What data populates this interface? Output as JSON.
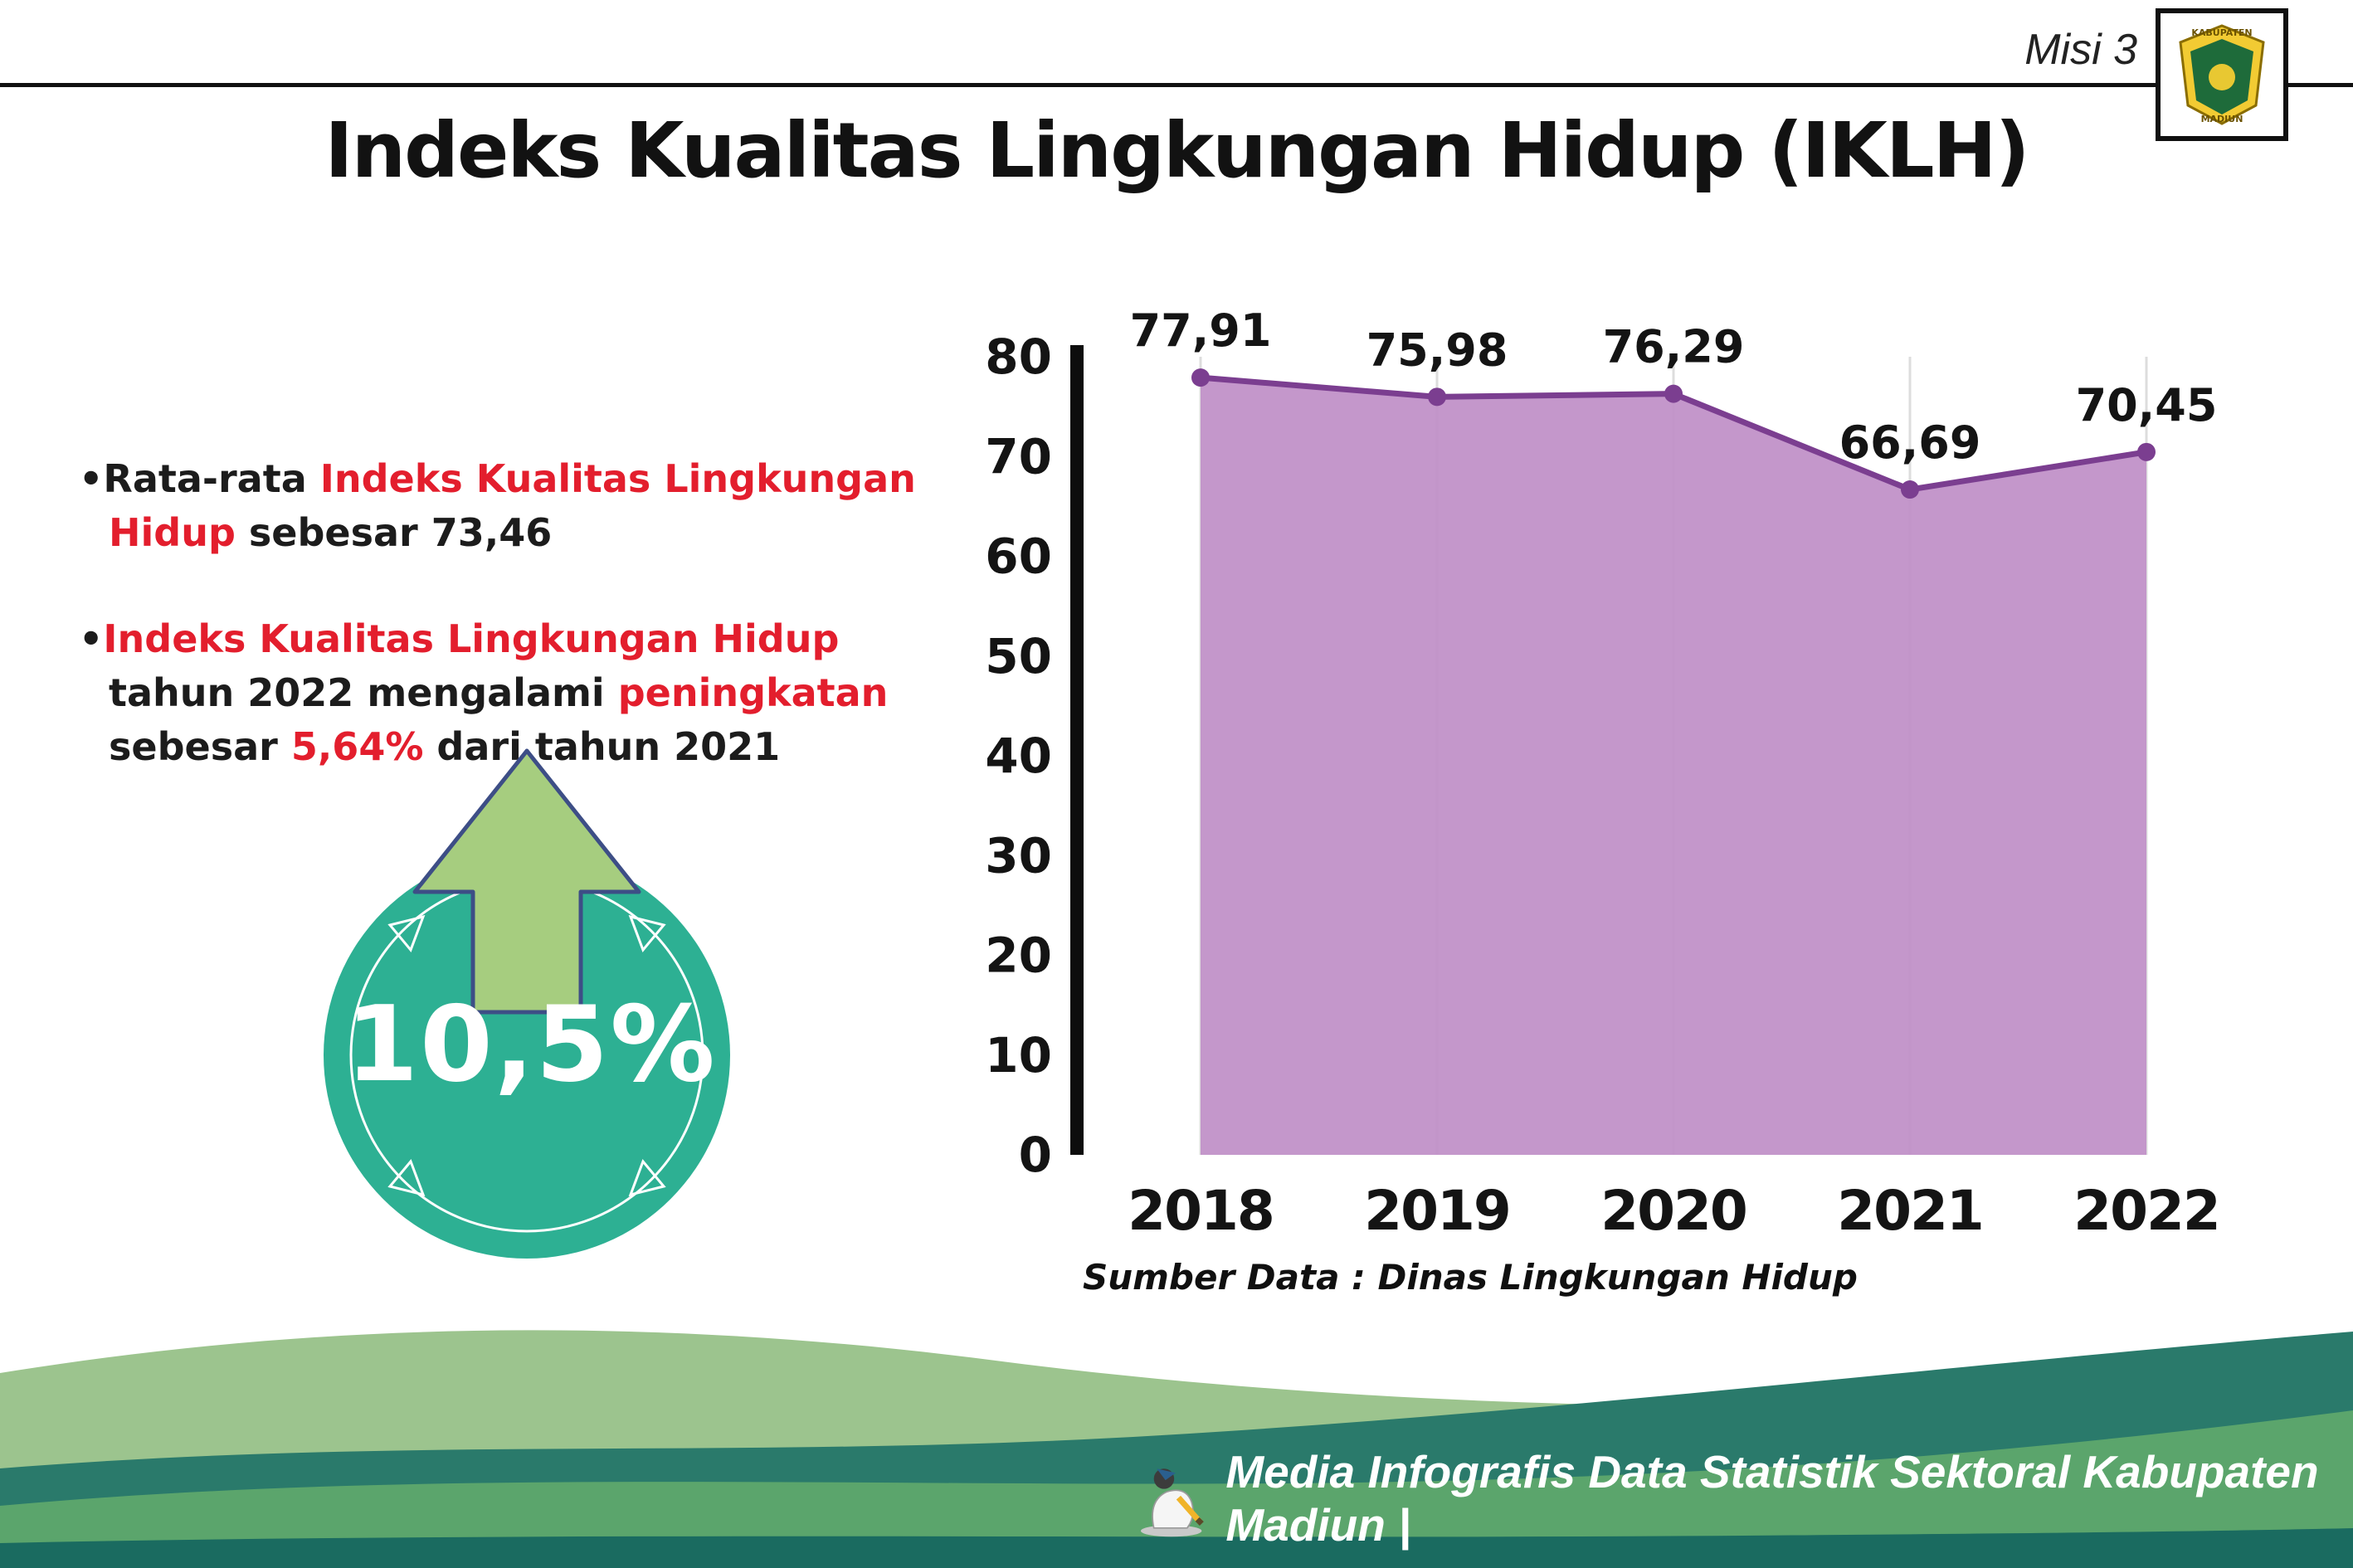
{
  "page": {
    "title": "Indeks Kualitas Lingkungan Hidup (IKLH)"
  },
  "header": {
    "misi_label": "Misi 3",
    "logo": {
      "top_text": "KABUPATEN",
      "bottom_text": "MADIUN",
      "icon": "kabupaten-madiun-crest-icon"
    }
  },
  "highlights": {
    "bullet_marker": "•",
    "bullet1": {
      "segments": [
        {
          "text": "Rata-rata "
        },
        {
          "text": "Indeks Kualitas Lingkungan Hidup"
        },
        {
          "text": " sebesar 73,46"
        }
      ]
    },
    "bullet2": {
      "segments": [
        {
          "text": "Indeks Kualitas Lingkungan Hidup"
        },
        {
          "text": " tahun 2022 mengalami "
        },
        {
          "text": "peningkatan"
        },
        {
          "text": " sebesar "
        },
        {
          "text": "5,64%"
        },
        {
          "text": " dari tahun 2021"
        }
      ]
    },
    "badge": {
      "value": "10,5%",
      "icon": "up-arrow-icon"
    }
  },
  "chart_data": {
    "type": "area",
    "title": "",
    "categories": [
      "2018",
      "2019",
      "2020",
      "2021",
      "2022"
    ],
    "values": [
      77.91,
      75.98,
      76.29,
      66.69,
      70.45
    ],
    "value_labels": [
      "77,91",
      "75,98",
      "76,29",
      "66,69",
      "70,45"
    ],
    "xlabel": "",
    "ylabel": "",
    "ylim": [
      0,
      80
    ],
    "ytick_step": 10,
    "grid": "vertical-light",
    "legend": "none",
    "area_color": "#bf8fc7",
    "line_color": "#7b3e90",
    "marker_color": "#7b3e90"
  },
  "source_note": "Sumber Data : Dinas Lingkungan Hidup",
  "footer": {
    "caption": "Media Infografis Data Statistik Sektoral Kabupaten Madiun |",
    "mascot": "writing-person-mascot-icon"
  },
  "colors": {
    "accent_red": "#e31e2d",
    "badge_teal": "#2db093",
    "arrow_green": "#a6cd7f",
    "footer_light_green": "#9cc48e",
    "footer_teal": "#2a7a6b",
    "footer_green": "#5ba56c",
    "footer_dark": "#1a6b60",
    "text_black": "#161616"
  }
}
